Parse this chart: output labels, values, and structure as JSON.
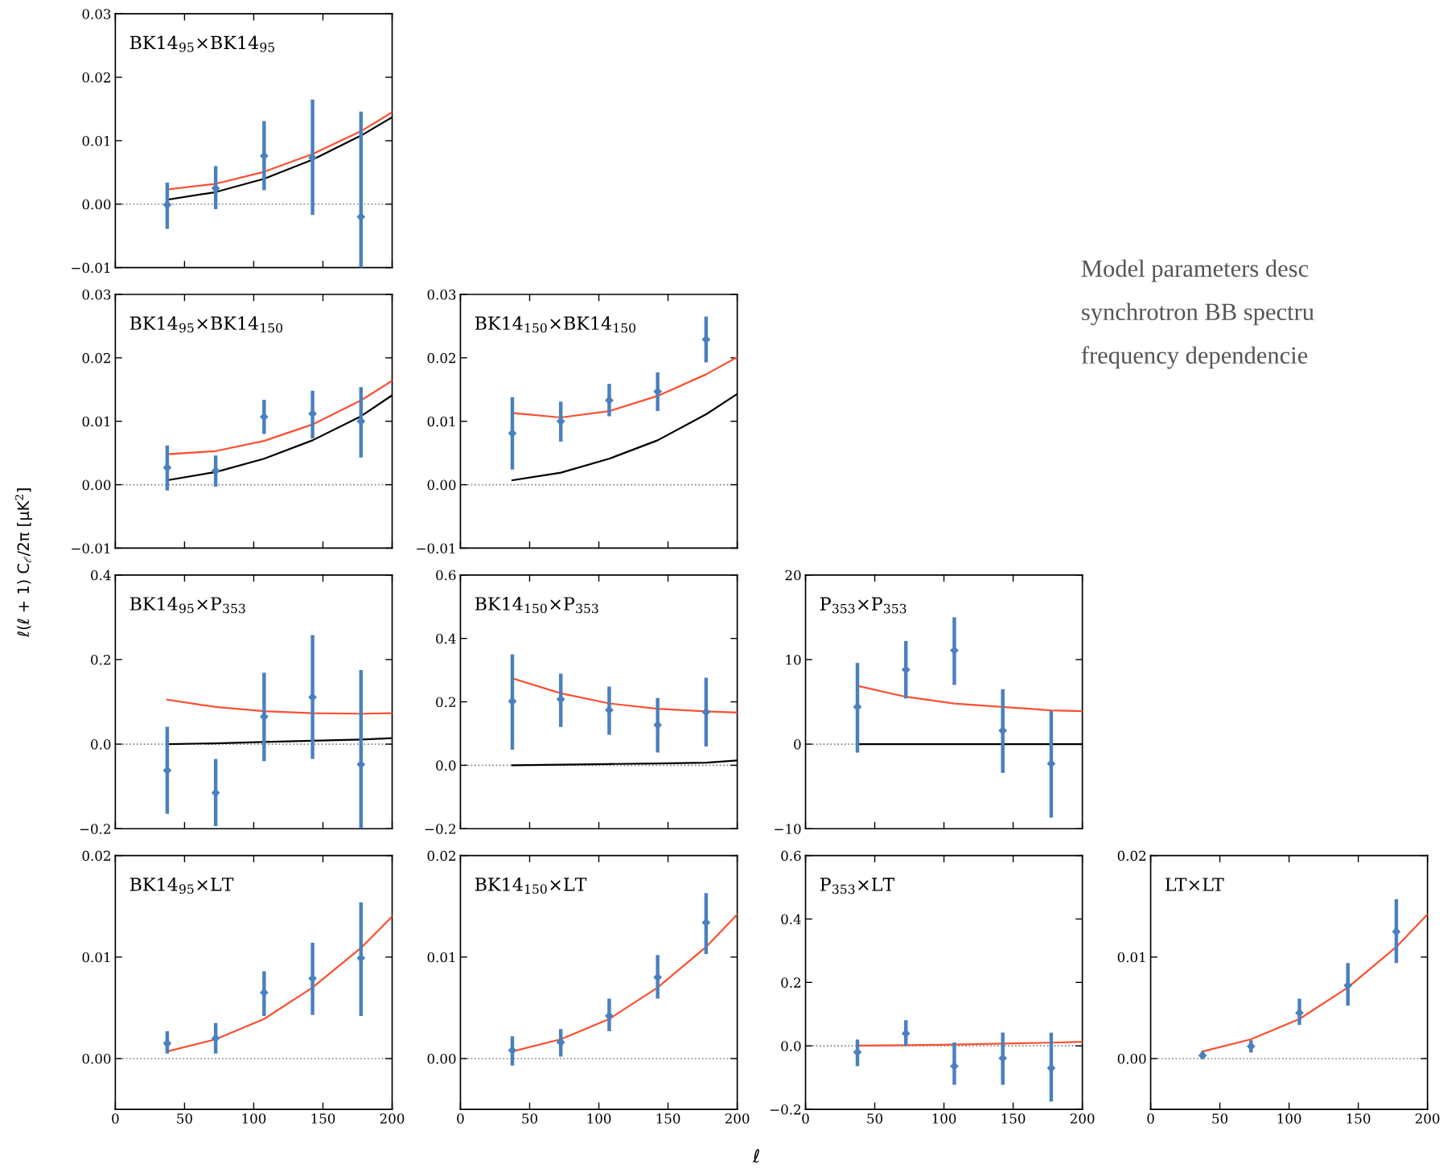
{
  "chart_data": [
    {
      "type": "scatter",
      "title": "BK14$_{95}$×BK14$_{95}$",
      "xlim": [
        0,
        200
      ],
      "xticks": [
        0,
        50,
        100,
        150,
        200
      ],
      "ylim": [
        -0.01,
        0.03
      ],
      "yticks": [
        {
          "value": -0.01,
          "label": "−0.01"
        },
        {
          "value": 0,
          "label": "0.00"
        },
        0.01,
        0.02,
        0.03
      ],
      "tick_labels": "y",
      "grid": false,
      "ref_lines": [
        {
          "axis": "y",
          "value": 0,
          "color": "#808080",
          "line_style": "dotted"
        }
      ],
      "series": [
        {
          "type": "line",
          "color": "#fc4f30",
          "x": [
            37.5,
            72.5,
            107.5,
            142.5,
            177.5,
            200
          ],
          "values": [
            0.0023,
            0.0032,
            0.0051,
            0.0079,
            0.0115,
            0.0145
          ]
        },
        {
          "type": "line",
          "color": "#000000",
          "x": [
            37.5,
            72.5,
            107.5,
            142.5,
            177.5,
            200
          ],
          "values": [
            0.0007,
            0.0019,
            0.004,
            0.007,
            0.0108,
            0.0137
          ]
        },
        {
          "type": "scatter",
          "color": "#4a80bd",
          "marker": "diamond",
          "x": [
            37.5,
            72.5,
            107.5,
            142.5,
            177.5
          ],
          "values": [
            -0.0001,
            0.0025,
            0.0076,
            0.0073,
            -0.002
          ],
          "errors": [
            [
              -0.0039,
              0.0034
            ],
            [
              -0.0008,
              0.006
            ],
            [
              0.0022,
              0.0131
            ],
            [
              -0.0017,
              0.0165
            ],
            [
              -0.01,
              0.0146
            ]
          ]
        }
      ]
    },
    {
      "type": "scatter",
      "title": "BK14$_{95}$×BK14$_{150}$",
      "ylabel": "ℓ(ℓ + 1) C$_{ℓ}$/2π [μK$^{2}$]",
      "xlim": [
        0,
        200
      ],
      "xticks": [
        0,
        50,
        100,
        150,
        200
      ],
      "ylim": [
        -0.01,
        0.03
      ],
      "yticks": [
        {
          "value": -0.01,
          "label": "−0.01"
        },
        {
          "value": 0,
          "label": "0.00"
        },
        0.01,
        0.02,
        0.03
      ],
      "tick_labels": "y",
      "grid": false,
      "ref_lines": [
        {
          "axis": "y",
          "value": 0,
          "color": "#808080",
          "line_style": "dotted"
        }
      ],
      "series": [
        {
          "type": "line",
          "color": "#fc4f30",
          "x": [
            37.5,
            72.5,
            107.5,
            142.5,
            177.5,
            200
          ],
          "values": [
            0.0048,
            0.0053,
            0.0069,
            0.0095,
            0.0133,
            0.0164
          ]
        },
        {
          "type": "line",
          "color": "#000000",
          "x": [
            37.5,
            72.5,
            107.5,
            142.5,
            177.5,
            200
          ],
          "values": [
            0.0007,
            0.002,
            0.0041,
            0.007,
            0.0108,
            0.0141
          ]
        },
        {
          "type": "scatter",
          "color": "#4a80bd",
          "marker": "diamond",
          "x": [
            37.5,
            72.5,
            107.5,
            142.5,
            177.5
          ],
          "values": [
            0.0027,
            0.0022,
            0.0107,
            0.0112,
            0.01
          ],
          "errors": [
            [
              -0.0009,
              0.0062
            ],
            [
              -0.0003,
              0.0046
            ],
            [
              0.008,
              0.0134
            ],
            [
              0.0073,
              0.0148
            ],
            [
              0.0043,
              0.0154
            ]
          ]
        }
      ]
    },
    {
      "type": "scatter",
      "title": "BK14$_{150}$×BK14$_{150}$",
      "xlim": [
        0,
        200
      ],
      "xticks": [
        0,
        50,
        100,
        150,
        200
      ],
      "ylim": [
        -0.01,
        0.03
      ],
      "yticks": [
        {
          "value": -0.01,
          "label": "−0.01"
        },
        {
          "value": 0,
          "label": "0.00"
        },
        0.01,
        0.02,
        0.03
      ],
      "tick_labels": "y",
      "grid": false,
      "ref_lines": [
        {
          "axis": "y",
          "value": 0,
          "color": "#808080",
          "line_style": "dotted"
        }
      ],
      "series": [
        {
          "type": "line",
          "color": "#fc4f30",
          "x": [
            37.5,
            72.5,
            107.5,
            142.5,
            177.5,
            200
          ],
          "values": [
            0.0113,
            0.0106,
            0.0116,
            0.014,
            0.0174,
            0.0201
          ]
        },
        {
          "type": "line",
          "color": "#000000",
          "x": [
            37.5,
            72.5,
            107.5,
            142.5,
            177.5,
            200
          ],
          "values": [
            0.0007,
            0.0019,
            0.0041,
            0.007,
            0.0111,
            0.0143
          ]
        },
        {
          "type": "scatter",
          "color": "#4a80bd",
          "marker": "diamond",
          "x": [
            37.5,
            72.5,
            107.5,
            142.5,
            177.5
          ],
          "values": [
            0.0081,
            0.01,
            0.0133,
            0.0147,
            0.0229
          ],
          "errors": [
            [
              0.0024,
              0.0138
            ],
            [
              0.0068,
              0.0131
            ],
            [
              0.0108,
              0.0159
            ],
            [
              0.0116,
              0.0177
            ],
            [
              0.0193,
              0.0265
            ]
          ]
        }
      ]
    },
    {
      "type": "scatter",
      "title": "BK14$_{95}$×P$_{353}$",
      "xlim": [
        0,
        200
      ],
      "xticks": [
        0,
        50,
        100,
        150,
        200
      ],
      "ylim": [
        -0.2,
        0.4
      ],
      "yticks": [
        {
          "value": -0.2,
          "label": "−0.2"
        },
        {
          "value": 0,
          "label": "0.0"
        },
        0.2,
        0.4
      ],
      "tick_labels": "y",
      "grid": false,
      "ref_lines": [
        {
          "axis": "y",
          "value": 0,
          "color": "#808080",
          "line_style": "dotted"
        }
      ],
      "series": [
        {
          "type": "line",
          "color": "#fc4f30",
          "x": [
            37.5,
            72.5,
            107.5,
            142.5,
            177.5,
            200
          ],
          "values": [
            0.105,
            0.088,
            0.078,
            0.073,
            0.072,
            0.073
          ]
        },
        {
          "type": "line",
          "color": "#000000",
          "x": [
            37.5,
            72.5,
            107.5,
            142.5,
            177.5,
            200
          ],
          "values": [
            0.0,
            0.002,
            0.005,
            0.008,
            0.011,
            0.014
          ]
        },
        {
          "type": "scatter",
          "color": "#4a80bd",
          "marker": "diamond",
          "x": [
            37.5,
            72.5,
            107.5,
            142.5,
            177.5
          ],
          "values": [
            -0.062,
            -0.115,
            0.065,
            0.111,
            -0.048
          ],
          "errors": [
            [
              -0.165,
              0.041
            ],
            [
              -0.194,
              -0.035
            ],
            [
              -0.04,
              0.169
            ],
            [
              -0.035,
              0.258
            ],
            [
              -0.2,
              0.175
            ]
          ]
        }
      ]
    },
    {
      "type": "scatter",
      "title": "BK14$_{150}$×P$_{353}$",
      "xlim": [
        0,
        200
      ],
      "xticks": [
        0,
        50,
        100,
        150,
        200
      ],
      "ylim": [
        -0.2,
        0.6
      ],
      "yticks": [
        {
          "value": -0.2,
          "label": "−0.2"
        },
        {
          "value": 0,
          "label": "0.0"
        },
        0.2,
        0.4,
        0.6
      ],
      "tick_labels": "y",
      "grid": false,
      "ref_lines": [
        {
          "axis": "y",
          "value": 0,
          "color": "#808080",
          "line_style": "dotted"
        }
      ],
      "series": [
        {
          "type": "line",
          "color": "#fc4f30",
          "x": [
            37.5,
            72.5,
            107.5,
            142.5,
            177.5,
            200
          ],
          "values": [
            0.274,
            0.227,
            0.195,
            0.178,
            0.17,
            0.166
          ]
        },
        {
          "type": "line",
          "color": "#000000",
          "x": [
            37.5,
            72.5,
            107.5,
            142.5,
            177.5,
            200
          ],
          "values": [
            0.0,
            0.002,
            0.004,
            0.006,
            0.008,
            0.015
          ]
        },
        {
          "type": "scatter",
          "color": "#4a80bd",
          "marker": "diamond",
          "x": [
            37.5,
            72.5,
            107.5,
            142.5,
            177.5
          ],
          "values": [
            0.202,
            0.208,
            0.174,
            0.127,
            0.168
          ],
          "errors": [
            [
              0.049,
              0.35
            ],
            [
              0.121,
              0.289
            ],
            [
              0.096,
              0.248
            ],
            [
              0.04,
              0.212
            ],
            [
              0.059,
              0.276
            ]
          ]
        }
      ]
    },
    {
      "type": "scatter",
      "title": "P$_{353}$×P$_{353}$",
      "xlim": [
        0,
        200
      ],
      "xticks": [
        0,
        50,
        100,
        150,
        200
      ],
      "ylim": [
        -10,
        20
      ],
      "yticks": [
        {
          "value": -10,
          "label": "−10"
        },
        0,
        10,
        20
      ],
      "tick_labels": "y",
      "grid": false,
      "ref_lines": [
        {
          "axis": "y",
          "value": 0,
          "color": "#808080",
          "line_style": "dotted"
        }
      ],
      "series": [
        {
          "type": "line",
          "color": "#fc4f30",
          "x": [
            37.5,
            72.5,
            107.5,
            142.5,
            177.5,
            200
          ],
          "values": [
            6.9,
            5.6,
            4.8,
            4.4,
            4.0,
            3.9
          ]
        },
        {
          "type": "line",
          "color": "#000000",
          "x": [
            37.5,
            72.5,
            107.5,
            142.5,
            177.5,
            200
          ],
          "values": [
            0,
            0,
            0,
            0,
            0,
            0
          ]
        },
        {
          "type": "scatter",
          "color": "#4a80bd",
          "marker": "diamond",
          "x": [
            37.5,
            72.5,
            107.5,
            142.5,
            177.5
          ],
          "values": [
            4.4,
            8.8,
            11.1,
            1.6,
            -2.3
          ],
          "errors": [
            [
              -1.0,
              9.6
            ],
            [
              5.4,
              12.2
            ],
            [
              7.0,
              15.0
            ],
            [
              -3.4,
              6.5
            ],
            [
              -8.7,
              3.9
            ]
          ]
        }
      ]
    },
    {
      "type": "scatter",
      "title": "BK14$_{95}$×LT",
      "xlim": [
        0,
        200
      ],
      "xticks": [
        0,
        50,
        100,
        150,
        200
      ],
      "ylim": [
        -0.005,
        0.02
      ],
      "yticks": [
        {
          "value": 0,
          "label": "0.00"
        },
        0.01,
        0.02
      ],
      "grid": false,
      "ref_lines": [
        {
          "axis": "y",
          "value": 0,
          "color": "#808080",
          "line_style": "dotted"
        }
      ],
      "series": [
        {
          "type": "line",
          "color": "#fc4f30",
          "x": [
            37.5,
            72.5,
            107.5,
            142.5,
            177.5,
            200
          ],
          "values": [
            0.0007,
            0.0019,
            0.0039,
            0.007,
            0.0109,
            0.014
          ]
        },
        {
          "type": "scatter",
          "color": "#4a80bd",
          "marker": "diamond",
          "x": [
            37.5,
            72.5,
            107.5,
            142.5,
            177.5
          ],
          "values": [
            0.0015,
            0.002,
            0.0065,
            0.0079,
            0.0099
          ],
          "errors": [
            [
              0.0005,
              0.0027
            ],
            [
              0.0005,
              0.0035
            ],
            [
              0.0042,
              0.0086
            ],
            [
              0.0043,
              0.0114
            ],
            [
              0.0042,
              0.0154
            ]
          ]
        }
      ]
    },
    {
      "type": "scatter",
      "title": "BK14$_{150}$×LT",
      "xlim": [
        0,
        200
      ],
      "xticks": [
        0,
        50,
        100,
        150,
        200
      ],
      "ylim": [
        -0.005,
        0.02
      ],
      "yticks": [
        {
          "value": 0,
          "label": "0.00"
        },
        0.01,
        0.02
      ],
      "grid": false,
      "ref_lines": [
        {
          "axis": "y",
          "value": 0,
          "color": "#808080",
          "line_style": "dotted"
        }
      ],
      "series": [
        {
          "type": "line",
          "color": "#fc4f30",
          "x": [
            37.5,
            72.5,
            107.5,
            142.5,
            177.5,
            200
          ],
          "values": [
            0.0007,
            0.0019,
            0.0039,
            0.007,
            0.011,
            0.0142
          ]
        },
        {
          "type": "scatter",
          "color": "#4a80bd",
          "marker": "diamond",
          "x": [
            37.5,
            72.5,
            107.5,
            142.5,
            177.5
          ],
          "values": [
            0.0008,
            0.0016,
            0.0042,
            0.008,
            0.0134
          ],
          "errors": [
            [
              -0.0007,
              0.0022
            ],
            [
              0.0002,
              0.0029
            ],
            [
              0.0027,
              0.0059
            ],
            [
              0.0059,
              0.0102
            ],
            [
              0.0103,
              0.0163
            ]
          ]
        }
      ]
    },
    {
      "type": "scatter",
      "title": "P$_{353}$×LT",
      "xlabel": "ℓ",
      "xlim": [
        0,
        200
      ],
      "xticks": [
        0,
        50,
        100,
        150,
        200
      ],
      "ylim": [
        -0.2,
        0.6
      ],
      "yticks": [
        {
          "value": -0.2,
          "label": "−0.2"
        },
        {
          "value": 0,
          "label": "0.0"
        },
        0.2,
        0.4,
        0.6
      ],
      "grid": false,
      "ref_lines": [
        {
          "axis": "y",
          "value": 0,
          "color": "#808080",
          "line_style": "dotted"
        }
      ],
      "series": [
        {
          "type": "line",
          "color": "#fc4f30",
          "x": [
            37.5,
            72.5,
            107.5,
            142.5,
            177.5,
            200
          ],
          "values": [
            0.001,
            0.002,
            0.004,
            0.007,
            0.01,
            0.013
          ]
        },
        {
          "type": "scatter",
          "color": "#4a80bd",
          "marker": "diamond",
          "x": [
            37.5,
            72.5,
            107.5,
            142.5,
            177.5
          ],
          "values": [
            -0.02,
            0.039,
            -0.064,
            -0.039,
            -0.07
          ],
          "errors": [
            [
              -0.064,
              0.02
            ],
            [
              0.0,
              0.081
            ],
            [
              -0.123,
              0.011
            ],
            [
              -0.123,
              0.042
            ],
            [
              -0.176,
              0.042
            ]
          ]
        }
      ]
    },
    {
      "type": "scatter",
      "title": "LT×LT",
      "xlim": [
        0,
        200
      ],
      "xticks": [
        0,
        50,
        100,
        150,
        200
      ],
      "ylim": [
        -0.005,
        0.02
      ],
      "yticks": [
        {
          "value": 0,
          "label": "0.00"
        },
        0.01,
        0.02
      ],
      "grid": false,
      "ref_lines": [
        {
          "axis": "y",
          "value": 0,
          "color": "#808080",
          "line_style": "dotted"
        }
      ],
      "series": [
        {
          "type": "line",
          "color": "#fc4f30",
          "x": [
            37.5,
            72.5,
            107.5,
            142.5,
            177.5,
            200
          ],
          "values": [
            0.0007,
            0.0019,
            0.0039,
            0.007,
            0.011,
            0.0142
          ]
        },
        {
          "type": "scatter",
          "color": "#4a80bd",
          "marker": "diamond",
          "x": [
            37.5,
            72.5,
            107.5,
            142.5,
            177.5
          ],
          "values": [
            0.0003,
            0.0012,
            0.0045,
            0.0072,
            0.0125
          ],
          "errors": [
            [
              0.0,
              0.0007
            ],
            [
              0.0006,
              0.0018
            ],
            [
              0.0033,
              0.0059
            ],
            [
              0.0052,
              0.0094
            ],
            [
              0.0094,
              0.0157
            ]
          ]
        }
      ]
    },
    {
      "type": "other",
      "annotations": [
        "Model parameters desc",
        "synchrotron BB spectru",
        "frequency dependencie"
      ]
    }
  ]
}
